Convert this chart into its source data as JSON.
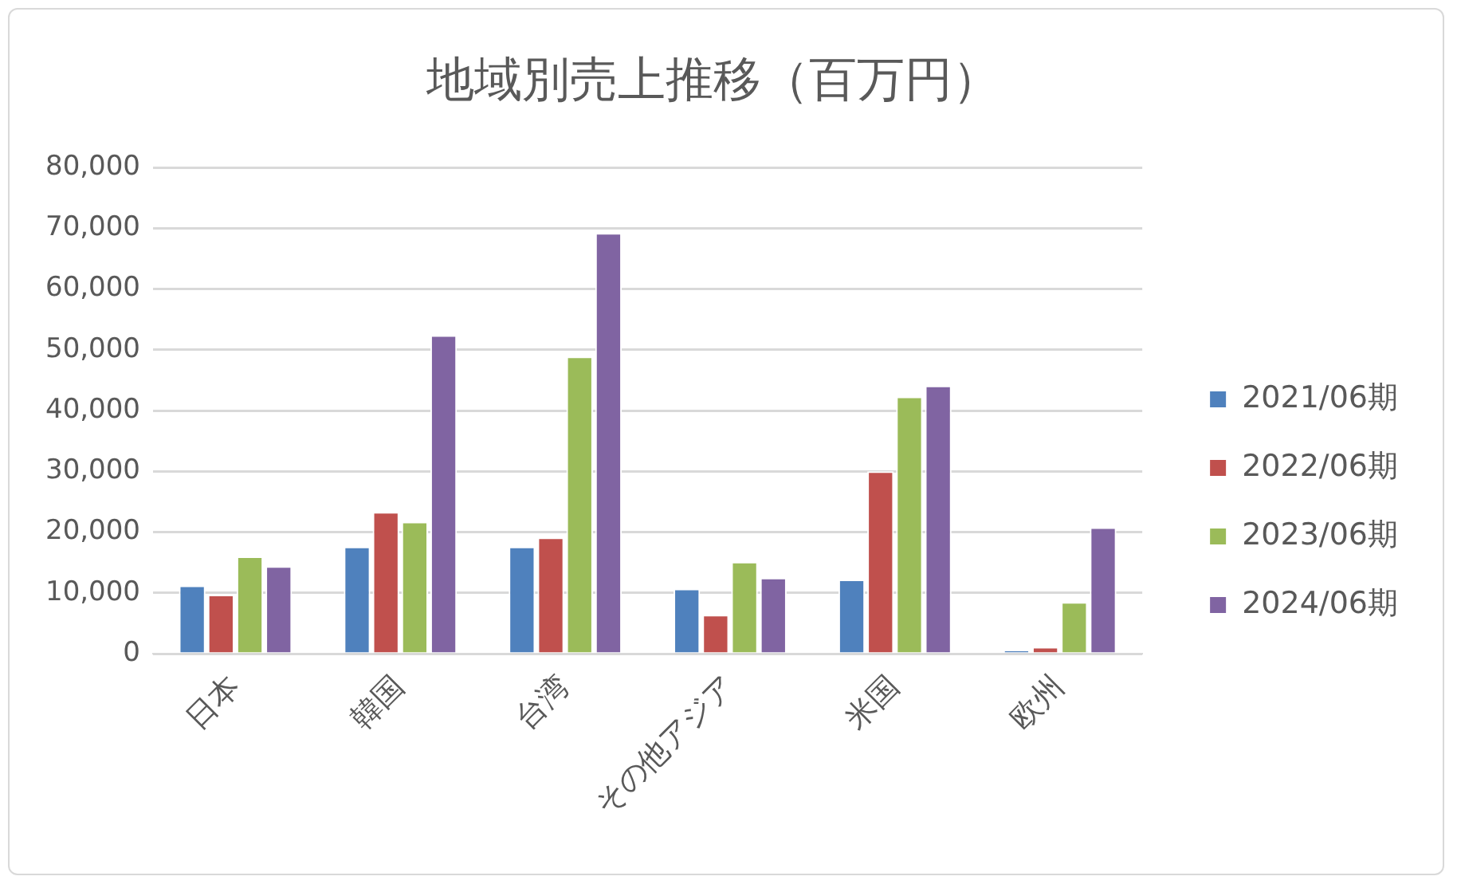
{
  "chart_data": {
    "type": "bar",
    "title": "地域別売上推移（百万円）",
    "categories": [
      "日本",
      "韓国",
      "台湾",
      "その他アジア",
      "米国",
      "欧州"
    ],
    "series": [
      {
        "name": "2021/06期",
        "color": "#4f81bd",
        "values": [
          11200,
          17600,
          17600,
          10700,
          12200,
          600
        ]
      },
      {
        "name": "2022/06期",
        "color": "#c0504d",
        "values": [
          9700,
          23300,
          19100,
          6400,
          30000,
          1100
        ]
      },
      {
        "name": "2023/06期",
        "color": "#9bbb59",
        "values": [
          16000,
          21700,
          48900,
          15100,
          42300,
          8500
        ]
      },
      {
        "name": "2024/06期",
        "color": "#8064a2",
        "values": [
          14400,
          52400,
          69200,
          12500,
          44100,
          20800
        ]
      }
    ],
    "ylim": [
      0,
      80000
    ],
    "yticks": [
      0,
      {
        "value": 10000,
        "label": "10,000"
      },
      {
        "value": 20000,
        "label": "20,000"
      },
      {
        "value": 30000,
        "label": "30,000"
      },
      {
        "value": 40000,
        "label": "40,000"
      },
      {
        "value": 50000,
        "label": "50,000"
      },
      {
        "value": 60000,
        "label": "60,000"
      },
      {
        "value": 70000,
        "label": "70,000"
      },
      {
        "value": 80000,
        "label": "80,000"
      }
    ],
    "grid": "y",
    "legend": "right"
  }
}
